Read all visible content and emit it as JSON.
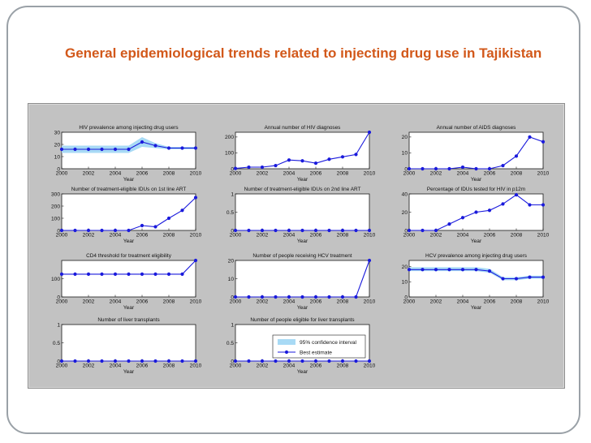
{
  "slide": {
    "title": "General epidemiological trends related to injecting drug use in Tajikistan"
  },
  "colors": {
    "title": "#d2581a",
    "series_line": "#1a1adc",
    "confidence_band": "#a8daf5",
    "panel_background": "#c2c2c2",
    "frame_border": "#9aa1a7"
  },
  "legend": {
    "ci_label": "95% confidence interval",
    "estimate_label": "Best estimate"
  },
  "chart_data": [
    {
      "type": "line",
      "title": "HIV prevalence among injecting drug users",
      "xlabel": "Year",
      "ylabel": "",
      "x": [
        2000,
        2001,
        2002,
        2003,
        2004,
        2005,
        2006,
        2007,
        2008,
        2009,
        2010
      ],
      "xticks": [
        "2000",
        "2002",
        "2004",
        "2006",
        "2008",
        "2010"
      ],
      "ylim": [
        0,
        30
      ],
      "yticks": [
        "0",
        "10",
        "20",
        "30"
      ],
      "series": [
        {
          "values": [
            16,
            16,
            16,
            16,
            16,
            16,
            22,
            19,
            17,
            17,
            17
          ]
        }
      ],
      "ci_lower": [
        13,
        13,
        13,
        13,
        13,
        13,
        18,
        17,
        16,
        16,
        16
      ],
      "ci_upper": [
        19,
        19,
        19,
        19,
        19,
        19,
        26,
        21,
        18,
        18,
        18
      ]
    },
    {
      "type": "line",
      "title": "Annual number of HIV diagnoses",
      "xlabel": "Year",
      "ylabel": "",
      "x": [
        2000,
        2001,
        2002,
        2003,
        2004,
        2005,
        2006,
        2007,
        2008,
        2009,
        2010
      ],
      "xticks": [
        "2000",
        "2002",
        "2004",
        "2006",
        "2008",
        "2010"
      ],
      "ylim": [
        0,
        230
      ],
      "yticks": [
        "0",
        "100",
        "200"
      ],
      "series": [
        {
          "values": [
            2,
            10,
            10,
            20,
            55,
            50,
            35,
            60,
            75,
            90,
            230
          ]
        }
      ]
    },
    {
      "type": "line",
      "title": "Annual number of AIDS diagnoses",
      "xlabel": "Year",
      "ylabel": "",
      "x": [
        2000,
        2001,
        2002,
        2003,
        2004,
        2005,
        2006,
        2007,
        2008,
        2009,
        2010
      ],
      "xticks": [
        "2000",
        "2002",
        "2004",
        "2006",
        "2008",
        "2010"
      ],
      "ylim": [
        0,
        23
      ],
      "yticks": [
        "0",
        "10",
        "20"
      ],
      "series": [
        {
          "values": [
            0,
            0,
            0,
            0,
            1,
            0,
            0,
            2,
            8,
            20,
            17
          ]
        }
      ]
    },
    {
      "type": "line",
      "title": "Number of treatment-eligible IDUs on 1st line ART",
      "xlabel": "Year",
      "ylabel": "",
      "x": [
        2000,
        2001,
        2002,
        2003,
        2004,
        2005,
        2006,
        2007,
        2008,
        2009,
        2010
      ],
      "xticks": [
        "2000",
        "2002",
        "2004",
        "2006",
        "2008",
        "2010"
      ],
      "ylim": [
        0,
        300
      ],
      "yticks": [
        "0",
        "100",
        "200",
        "300"
      ],
      "series": [
        {
          "values": [
            0,
            0,
            0,
            0,
            0,
            0,
            40,
            30,
            100,
            165,
            270
          ]
        }
      ]
    },
    {
      "type": "line",
      "title": "Number of treatment-eligible IDUs on 2nd line ART",
      "xlabel": "Year",
      "ylabel": "",
      "x": [
        2000,
        2001,
        2002,
        2003,
        2004,
        2005,
        2006,
        2007,
        2008,
        2009,
        2010
      ],
      "xticks": [
        "2000",
        "2002",
        "2004",
        "2006",
        "2008",
        "2010"
      ],
      "ylim": [
        0,
        1
      ],
      "yticks": [
        "0",
        "0.5",
        "1"
      ],
      "series": [
        {
          "values": [
            0,
            0,
            0,
            0,
            0,
            0,
            0,
            0,
            0,
            0,
            0
          ]
        }
      ]
    },
    {
      "type": "line",
      "title": "Percentage of IDUs tested for HIV in p12m",
      "xlabel": "Year",
      "ylabel": "",
      "x": [
        2000,
        2001,
        2002,
        2003,
        2004,
        2005,
        2006,
        2007,
        2008,
        2009,
        2010
      ],
      "xticks": [
        "2000",
        "2002",
        "2004",
        "2006",
        "2008",
        "2010"
      ],
      "ylim": [
        0,
        40
      ],
      "yticks": [
        "0",
        "20",
        "40"
      ],
      "series": [
        {
          "values": [
            0,
            0,
            0,
            7,
            14,
            20,
            22,
            29,
            39,
            28,
            28
          ]
        }
      ]
    },
    {
      "type": "line",
      "title": "CD4 threshold for treatment eligibility",
      "xlabel": "Year",
      "ylabel": "",
      "x": [
        2000,
        2001,
        2002,
        2003,
        2004,
        2005,
        2006,
        2007,
        2008,
        2009,
        2010
      ],
      "xticks": [
        "2000",
        "2002",
        "2004",
        "2006",
        "2008",
        "2010"
      ],
      "ylim": [
        0,
        200
      ],
      "yticks": [
        "0",
        "100"
      ],
      "series": [
        {
          "values": [
            125,
            125,
            125,
            125,
            125,
            125,
            125,
            125,
            125,
            125,
            200
          ]
        }
      ]
    },
    {
      "type": "line",
      "title": "Number of people receiving HCV treatment",
      "xlabel": "Year",
      "ylabel": "",
      "x": [
        2000,
        2001,
        2002,
        2003,
        2004,
        2005,
        2006,
        2007,
        2008,
        2009,
        2010
      ],
      "xticks": [
        "2000",
        "2002",
        "2004",
        "2006",
        "2008",
        "2010"
      ],
      "ylim": [
        0,
        20
      ],
      "yticks": [
        "0",
        "10",
        "20"
      ],
      "series": [
        {
          "values": [
            0,
            0,
            0,
            0,
            0,
            0,
            0,
            0,
            0,
            0,
            20
          ]
        }
      ]
    },
    {
      "type": "line",
      "title": "HCV prevalence among injecting drug users",
      "xlabel": "Year",
      "ylabel": "",
      "x": [
        2000,
        2001,
        2002,
        2003,
        2004,
        2005,
        2006,
        2007,
        2008,
        2009,
        2010
      ],
      "xticks": [
        "2000",
        "2002",
        "2004",
        "2006",
        "2008",
        "2010"
      ],
      "ylim": [
        0,
        24
      ],
      "yticks": [
        "0",
        "10",
        "20"
      ],
      "series": [
        {
          "values": [
            18,
            18,
            18,
            18,
            18,
            18,
            17,
            12,
            12,
            13,
            13
          ]
        }
      ],
      "ci_lower": [
        17,
        17,
        17,
        17,
        17,
        17,
        16,
        11,
        11,
        12,
        12
      ],
      "ci_upper": [
        19.5,
        19.5,
        19.5,
        19.5,
        19.5,
        19.5,
        18.5,
        13,
        13,
        14,
        14
      ]
    },
    {
      "type": "line",
      "title": "Number of liver transplants",
      "xlabel": "Year",
      "ylabel": "",
      "x": [
        2000,
        2001,
        2002,
        2003,
        2004,
        2005,
        2006,
        2007,
        2008,
        2009,
        2010
      ],
      "xticks": [
        "2000",
        "2002",
        "2004",
        "2006",
        "2008",
        "2010"
      ],
      "ylim": [
        0,
        1
      ],
      "yticks": [
        "0",
        "0.5",
        "1"
      ],
      "series": [
        {
          "values": [
            0,
            0,
            0,
            0,
            0,
            0,
            0,
            0,
            0,
            0,
            0
          ]
        }
      ]
    },
    {
      "type": "line",
      "title": "Number of people eligible for liver transplants",
      "xlabel": "Year",
      "ylabel": "",
      "x": [
        2000,
        2001,
        2002,
        2003,
        2004,
        2005,
        2006,
        2007,
        2008,
        2009,
        2010
      ],
      "xticks": [
        "2000",
        "2002",
        "2004",
        "2006",
        "2008",
        "2010"
      ],
      "ylim": [
        0,
        1
      ],
      "yticks": [
        "0",
        "0.5",
        "1"
      ],
      "series": [
        {
          "values": [
            0,
            0,
            0,
            0,
            0,
            0,
            0,
            0,
            0,
            0,
            0
          ]
        }
      ]
    }
  ]
}
